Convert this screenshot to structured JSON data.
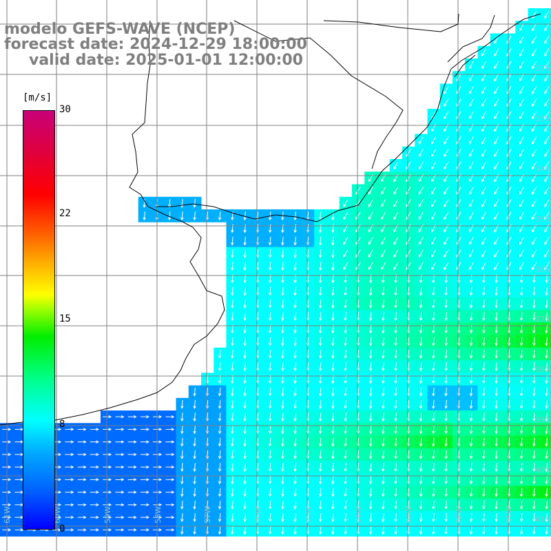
{
  "title": {
    "line1": "modelo GEFS-WAVE (NCEP)",
    "line2": "forecast date: 2024-12-29 18:00:00",
    "line3": "valid date: 2025-01-01 12:00:00"
  },
  "colorbar": {
    "unit": "[m/s]",
    "ticks": [
      "30",
      "22",
      "15",
      "8",
      "0"
    ],
    "range": [
      0,
      30
    ],
    "colors": [
      "#0000ff",
      "#00a8ff",
      "#00ffff",
      "#00ee00",
      "#ffff00",
      "#ff6600",
      "#ff0000",
      "#c80078"
    ]
  },
  "graticule": {
    "lat_labels": [
      "32S",
      "33S",
      "34S",
      "35S",
      "36S",
      "37S",
      "38S",
      "39S",
      "40S",
      "41S"
    ],
    "lon_labels": [
      "61W",
      "60W",
      "59W",
      "58W",
      "57W",
      "56W",
      "55W",
      "54W",
      "53W",
      "52W",
      "51W"
    ]
  },
  "legend_colors": {
    "land": "#ffffff",
    "coast": "#000000",
    "grid": "#7f7f7f",
    "arrow": "#ffffff"
  }
}
